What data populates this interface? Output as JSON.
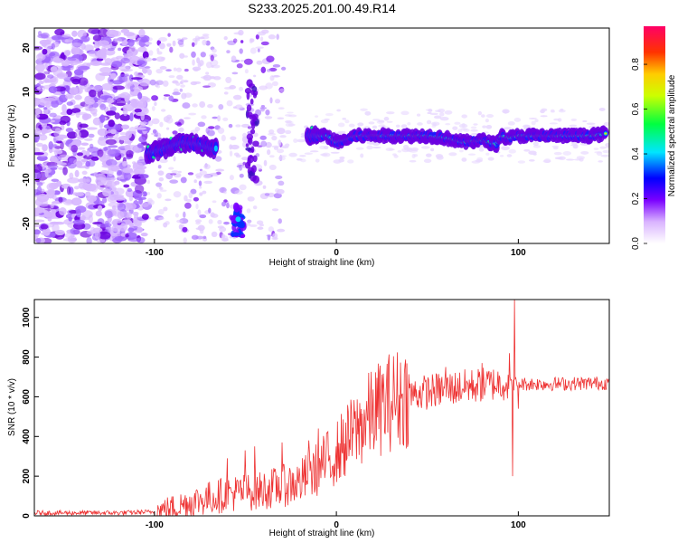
{
  "title": "S233.2025.201.00.49.R14",
  "chart_data": [
    {
      "type": "heatmap",
      "xlabel": "Height of straight line (km)",
      "ylabel": "Frequency (Hz)",
      "xlim": [
        -166,
        150
      ],
      "ylim": [
        -24.5,
        24.5
      ],
      "xticks": [
        -100,
        0,
        100
      ],
      "yticks": [
        -20,
        -10,
        0,
        10,
        20
      ],
      "colorbar": {
        "label": "Normalized spectral amplitude",
        "range": [
          0,
          0.97
        ],
        "ticks": [
          0.0,
          0.2,
          0.4,
          0.6,
          0.8
        ],
        "tick_labels": [
          "0.0",
          "0.2",
          "0.4",
          "0.6",
          "0.8"
        ]
      },
      "ridge": {
        "x": [
          -104,
          -95,
          -85,
          -75,
          -68,
          -15,
          -5,
          0,
          5,
          10,
          30,
          50,
          60,
          70,
          80,
          88,
          90,
          95,
          100,
          120,
          140,
          148
        ],
        "freq": [
          -4,
          -3,
          -1.5,
          -2,
          -3,
          0,
          0,
          -1.5,
          -1,
          0,
          0,
          0,
          -0.5,
          -1.5,
          -1,
          -2,
          0,
          -0.5,
          0,
          0,
          0,
          0.5
        ]
      }
    },
    {
      "type": "line",
      "xlabel": "Height of straight line (km)",
      "ylabel": "SNR (10 * v/v)",
      "xlim": [
        -166,
        150
      ],
      "ylim": [
        0,
        1090
      ],
      "xticks": [
        -100,
        0,
        100
      ],
      "yticks": [
        0,
        200,
        400,
        600,
        800,
        1000
      ],
      "color": "#ee3333",
      "trend": {
        "x": [
          -166,
          -120,
          -100,
          -90,
          -80,
          -60,
          -40,
          -20,
          -10,
          0,
          10,
          20,
          30,
          40,
          60,
          80,
          90,
          100,
          120,
          150
        ],
        "y": [
          15,
          15,
          20,
          40,
          70,
          110,
          130,
          170,
          240,
          320,
          420,
          520,
          580,
          610,
          640,
          660,
          670,
          665,
          665,
          670
        ]
      },
      "spikes": {
        "x": [
          -60,
          -50,
          -45,
          -30,
          -15,
          -10,
          0,
          5,
          60,
          80,
          95,
          97,
          98,
          100
        ],
        "y": [
          290,
          330,
          350,
          370,
          380,
          440,
          350,
          470,
          750,
          770,
          820,
          200,
          1090,
          540
        ]
      }
    }
  ]
}
